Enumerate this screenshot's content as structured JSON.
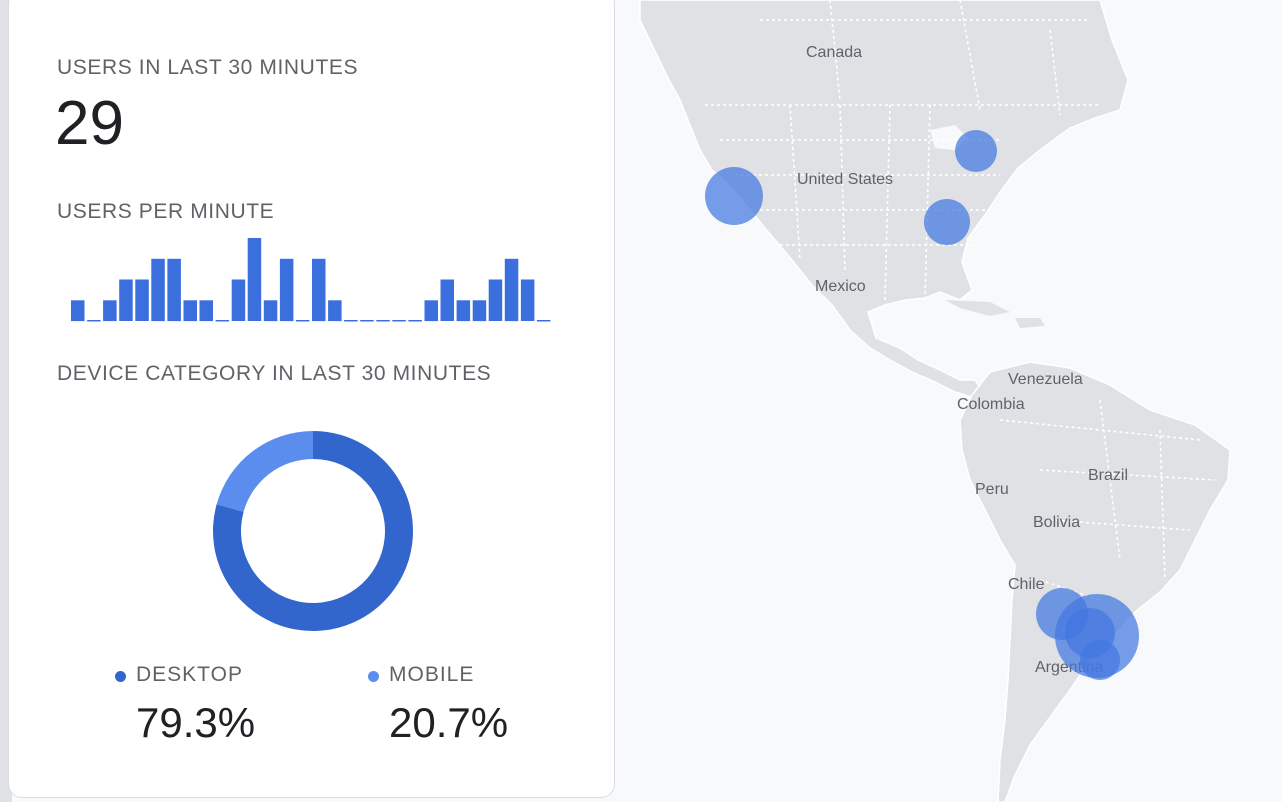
{
  "card": {
    "users_title": "USERS IN LAST 30 MINUTES",
    "users_count": "29",
    "per_minute_title": "USERS PER MINUTE",
    "device_title": "DEVICE CATEGORY IN LAST 30 MINUTES"
  },
  "colors": {
    "bar": "#3b6fde",
    "desktop": "#3366cc",
    "mobile": "#5b8def",
    "map_land": "#dfe1e5",
    "map_border": "#ffffff",
    "bubble": "rgba(66,119,224,0.72)"
  },
  "legend": {
    "desktop_label": "DESKTOP",
    "desktop_value": "79.3%",
    "mobile_label": "MOBILE",
    "mobile_value": "20.7%"
  },
  "chart_data": [
    {
      "type": "bar",
      "series": [
        {
          "values": [
            1,
            0,
            1,
            2,
            2,
            3,
            3,
            1,
            1,
            0,
            2,
            4,
            1,
            3,
            0,
            3,
            1,
            0,
            0,
            0,
            0,
            0,
            1,
            2,
            1,
            1,
            2,
            3,
            2,
            0
          ]
        }
      ],
      "ylim": [
        0,
        4
      ]
    },
    {
      "type": "pie",
      "categories": [
        "DESKTOP",
        "MOBILE"
      ],
      "values": [
        79.3,
        20.7
      ]
    }
  ],
  "map": {
    "labels": {
      "canada": "Canada",
      "united_states": "United States",
      "mexico": "Mexico",
      "venezuela": "Venezuela",
      "colombia": "Colombia",
      "brazil": "Brazil",
      "peru": "Peru",
      "bolivia": "Bolivia",
      "chile": "Chile",
      "argentina": "Argentina"
    }
  }
}
